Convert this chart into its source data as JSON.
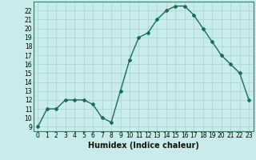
{
  "x": [
    0,
    1,
    2,
    3,
    4,
    5,
    6,
    7,
    8,
    9,
    10,
    11,
    12,
    13,
    14,
    15,
    16,
    17,
    18,
    19,
    20,
    21,
    22,
    23
  ],
  "y": [
    9,
    11,
    11,
    12,
    12,
    12,
    11.5,
    10,
    9.5,
    13,
    16.5,
    19,
    19.5,
    21,
    22,
    22.5,
    22.5,
    21.5,
    20,
    18.5,
    17,
    16,
    15,
    12
  ],
  "line_color": "#1a6b5a",
  "marker": "D",
  "marker_size": 2,
  "bg_color": "#c8ecec",
  "grid_color": "#aed4d4",
  "xlabel": "Humidex (Indice chaleur)",
  "ylim": [
    8.5,
    23.0
  ],
  "xlim": [
    -0.5,
    23.5
  ],
  "yticks": [
    9,
    10,
    11,
    12,
    13,
    14,
    15,
    16,
    17,
    18,
    19,
    20,
    21,
    22
  ],
  "xticks": [
    0,
    1,
    2,
    3,
    4,
    5,
    6,
    7,
    8,
    9,
    10,
    11,
    12,
    13,
    14,
    15,
    16,
    17,
    18,
    19,
    20,
    21,
    22,
    23
  ],
  "xlabel_fontsize": 7,
  "tick_fontsize": 5.5,
  "line_width": 1.0
}
